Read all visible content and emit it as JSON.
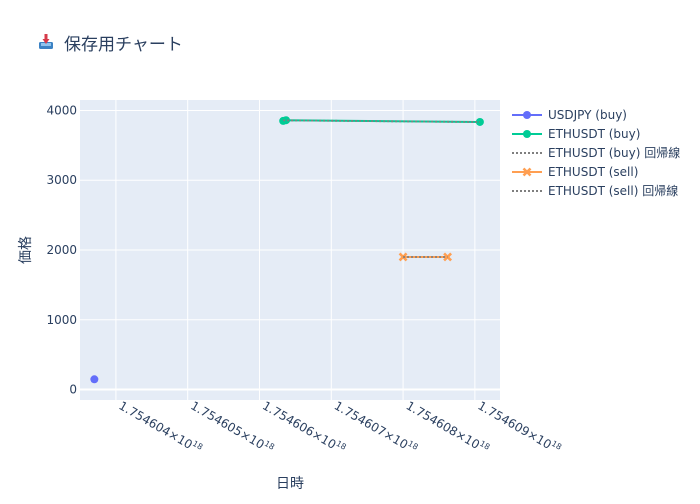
{
  "chart_data": {
    "type": "scatter",
    "title": "保存用チャート",
    "title_icon": "inbox-tray-icon",
    "xlabel": "日時",
    "ylabel": "価格",
    "xlim": [
      1.7546035e+18,
      1.75460935e+18
    ],
    "ylim": [
      -150,
      4150
    ],
    "x_scale_label": "×10¹⁸",
    "x_ticks": [
      {
        "value": 1.754604e+18,
        "label": "1.754604×10",
        "exp": "18"
      },
      {
        "value": 1.754605e+18,
        "label": "1.754605×10",
        "exp": "18"
      },
      {
        "value": 1.754606e+18,
        "label": "1.754606×10",
        "exp": "18"
      },
      {
        "value": 1.754607e+18,
        "label": "1.754607×10",
        "exp": "18"
      },
      {
        "value": 1.754608e+18,
        "label": "1.754608×10",
        "exp": "18"
      },
      {
        "value": 1.754609e+18,
        "label": "1.754609×10",
        "exp": "18"
      }
    ],
    "y_ticks": [
      0,
      1000,
      2000,
      3000,
      4000
    ],
    "grid": true,
    "legend_position": "right",
    "series": [
      {
        "name": "USDJPY (buy)",
        "style": "markers",
        "marker": "circle",
        "color": "#636efa",
        "x": [
          1.7546037e+18
        ],
        "y": [
          147
        ]
      },
      {
        "name": "ETHUSDT (buy)",
        "style": "lines+markers",
        "marker": "circle",
        "color": "#00cc96",
        "x": [
          1.75460633e+18,
          1.75460637e+18,
          1.75460907e+18
        ],
        "y": [
          3850,
          3860,
          3835
        ]
      },
      {
        "name": "ETHUSDT (buy) 回帰線",
        "style": "dotted-line",
        "color": "#7f7f7f",
        "x": [
          1.75460633e+18,
          1.75460907e+18
        ],
        "y": [
          3858,
          3834
        ]
      },
      {
        "name": "ETHUSDT (sell)",
        "style": "lines+markers",
        "marker": "x",
        "color": "#ff9f52",
        "x": [
          1.754608e+18,
          1.75460862e+18
        ],
        "y": [
          1900,
          1900
        ]
      },
      {
        "name": "ETHUSDT (sell) 回帰線",
        "style": "dotted-line",
        "color": "#7f7f7f",
        "x": [
          1.754608e+18,
          1.75460862e+18
        ],
        "y": [
          1900,
          1900
        ]
      }
    ]
  },
  "colors": {
    "plot_bg": "#e5ecf6",
    "grid": "#ffffff",
    "text": "#2a3f5f"
  }
}
